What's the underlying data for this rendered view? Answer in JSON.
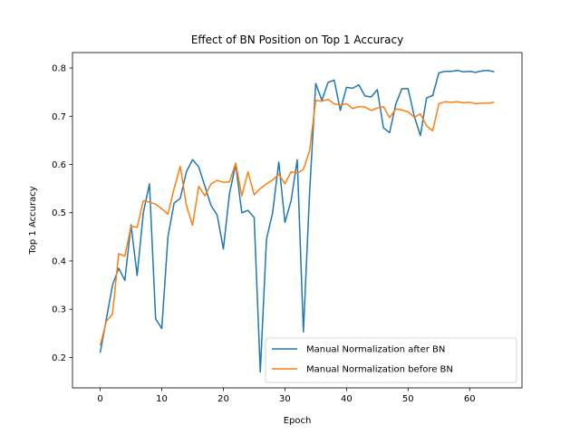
{
  "chart_data": {
    "type": "line",
    "title": "Effect of BN Position on Top 1 Accuracy",
    "xlabel": "Epoch",
    "ylabel": "Top 1 Accuracy",
    "xlim": [
      -4.5,
      68.5
    ],
    "ylim": [
      0.137,
      0.832
    ],
    "xticks": [
      0,
      10,
      20,
      30,
      40,
      50,
      60
    ],
    "yticks": [
      0.2,
      0.3,
      0.4,
      0.5,
      0.6,
      0.7,
      0.8
    ],
    "xtick_labels": [
      "0",
      "10",
      "20",
      "30",
      "40",
      "50",
      "60"
    ],
    "ytick_labels": [
      "0.2",
      "0.3",
      "0.4",
      "0.5",
      "0.6",
      "0.7",
      "0.8"
    ],
    "legend_position": "lower-right",
    "grid": false,
    "series": [
      {
        "name": "Manual Normalization after BN",
        "color": "#1f77b4",
        "x": [
          0,
          1,
          2,
          3,
          4,
          5,
          6,
          7,
          8,
          9,
          10,
          11,
          12,
          13,
          14,
          15,
          16,
          17,
          18,
          19,
          20,
          21,
          22,
          23,
          24,
          25,
          26,
          27,
          28,
          29,
          30,
          31,
          32,
          33,
          34,
          35,
          36,
          37,
          38,
          39,
          40,
          41,
          42,
          43,
          44,
          45,
          46,
          47,
          48,
          49,
          50,
          51,
          52,
          53,
          54,
          55,
          56,
          57,
          58,
          59,
          60,
          61,
          62,
          63,
          64
        ],
        "y": [
          0.21,
          0.28,
          0.35,
          0.385,
          0.36,
          0.475,
          0.37,
          0.5,
          0.56,
          0.28,
          0.26,
          0.45,
          0.52,
          0.53,
          0.585,
          0.61,
          0.595,
          0.555,
          0.515,
          0.495,
          0.425,
          0.54,
          0.6,
          0.5,
          0.505,
          0.49,
          0.17,
          0.445,
          0.5,
          0.605,
          0.48,
          0.525,
          0.61,
          0.253,
          0.54,
          0.768,
          0.733,
          0.77,
          0.775,
          0.712,
          0.76,
          0.758,
          0.765,
          0.742,
          0.74,
          0.755,
          0.676,
          0.666,
          0.725,
          0.757,
          0.757,
          0.7,
          0.66,
          0.738,
          0.743,
          0.79,
          0.793,
          0.793,
          0.795,
          0.792,
          0.793,
          0.791,
          0.794,
          0.795,
          0.792
        ]
      },
      {
        "name": "Manual Normalization before BN",
        "color": "#ff7f0e",
        "x": [
          0,
          1,
          2,
          3,
          4,
          5,
          6,
          7,
          8,
          9,
          10,
          11,
          12,
          13,
          14,
          15,
          16,
          17,
          18,
          19,
          20,
          21,
          22,
          23,
          24,
          25,
          26,
          27,
          28,
          29,
          30,
          31,
          32,
          33,
          34,
          35,
          36,
          37,
          38,
          39,
          40,
          41,
          42,
          43,
          44,
          45,
          46,
          47,
          48,
          49,
          50,
          51,
          52,
          53,
          54,
          55,
          56,
          57,
          58,
          59,
          60,
          61,
          62,
          63,
          64
        ],
        "y": [
          0.225,
          0.275,
          0.29,
          0.415,
          0.41,
          0.472,
          0.47,
          0.525,
          0.522,
          0.518,
          0.508,
          0.497,
          0.55,
          0.596,
          0.515,
          0.474,
          0.555,
          0.535,
          0.56,
          0.567,
          0.563,
          0.564,
          0.603,
          0.535,
          0.585,
          0.537,
          0.55,
          0.56,
          0.568,
          0.58,
          0.56,
          0.585,
          0.582,
          0.59,
          0.628,
          0.733,
          0.731,
          0.735,
          0.726,
          0.723,
          0.726,
          0.716,
          0.72,
          0.719,
          0.712,
          0.717,
          0.72,
          0.697,
          0.715,
          0.713,
          0.709,
          0.698,
          0.705,
          0.68,
          0.67,
          0.726,
          0.73,
          0.729,
          0.73,
          0.728,
          0.729,
          0.726,
          0.727,
          0.727,
          0.729
        ]
      }
    ]
  }
}
